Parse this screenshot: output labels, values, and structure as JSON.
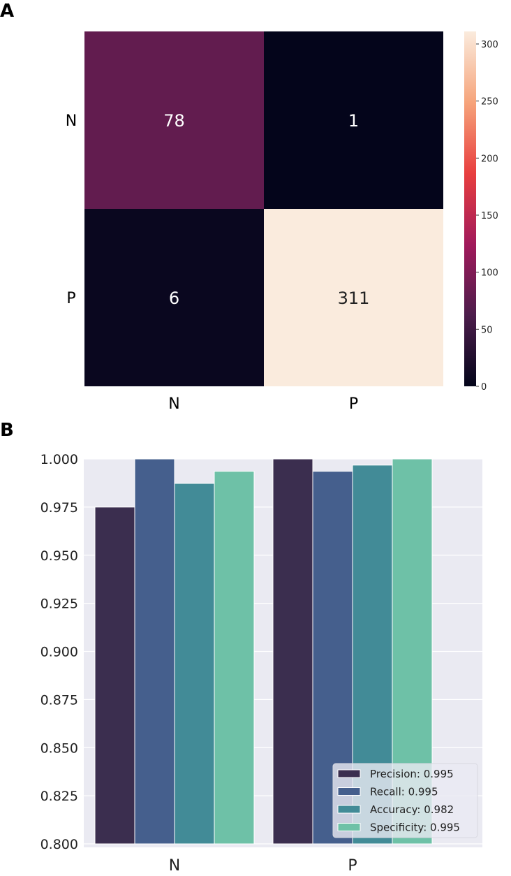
{
  "chart_data": [
    {
      "panel_label": "A",
      "type": "heatmap",
      "row_labels": [
        "N",
        "P"
      ],
      "col_labels": [
        "N",
        "P"
      ],
      "values": [
        [
          78,
          1
        ],
        [
          6,
          311
        ]
      ],
      "colormap": "rocket",
      "colorbar": {
        "range": [
          0,
          311
        ],
        "ticks": [
          0,
          50,
          100,
          150,
          200,
          250,
          300
        ]
      }
    },
    {
      "panel_label": "B",
      "type": "bar",
      "categories": [
        "N",
        "P"
      ],
      "ylim": [
        0.8,
        1.0
      ],
      "yticks": [
        "0.800",
        "0.825",
        "0.850",
        "0.875",
        "0.900",
        "0.925",
        "0.950",
        "0.975",
        "1.000"
      ],
      "grid": true,
      "legend_position": "bottom-right",
      "series": [
        {
          "name": "Precision: 0.995",
          "color": "#3b2e4f",
          "values": [
            0.975,
            1.0
          ]
        },
        {
          "name": "Recall: 0.995",
          "color": "#455f8d",
          "values": [
            1.0,
            0.9936
          ]
        },
        {
          "name": "Accuracy: 0.982",
          "color": "#428b97",
          "values": [
            0.9873,
            0.9968
          ]
        },
        {
          "name": "Specificity: 0.995",
          "color": "#6ec1a7",
          "values": [
            0.9936,
            1.0
          ]
        }
      ]
    }
  ]
}
